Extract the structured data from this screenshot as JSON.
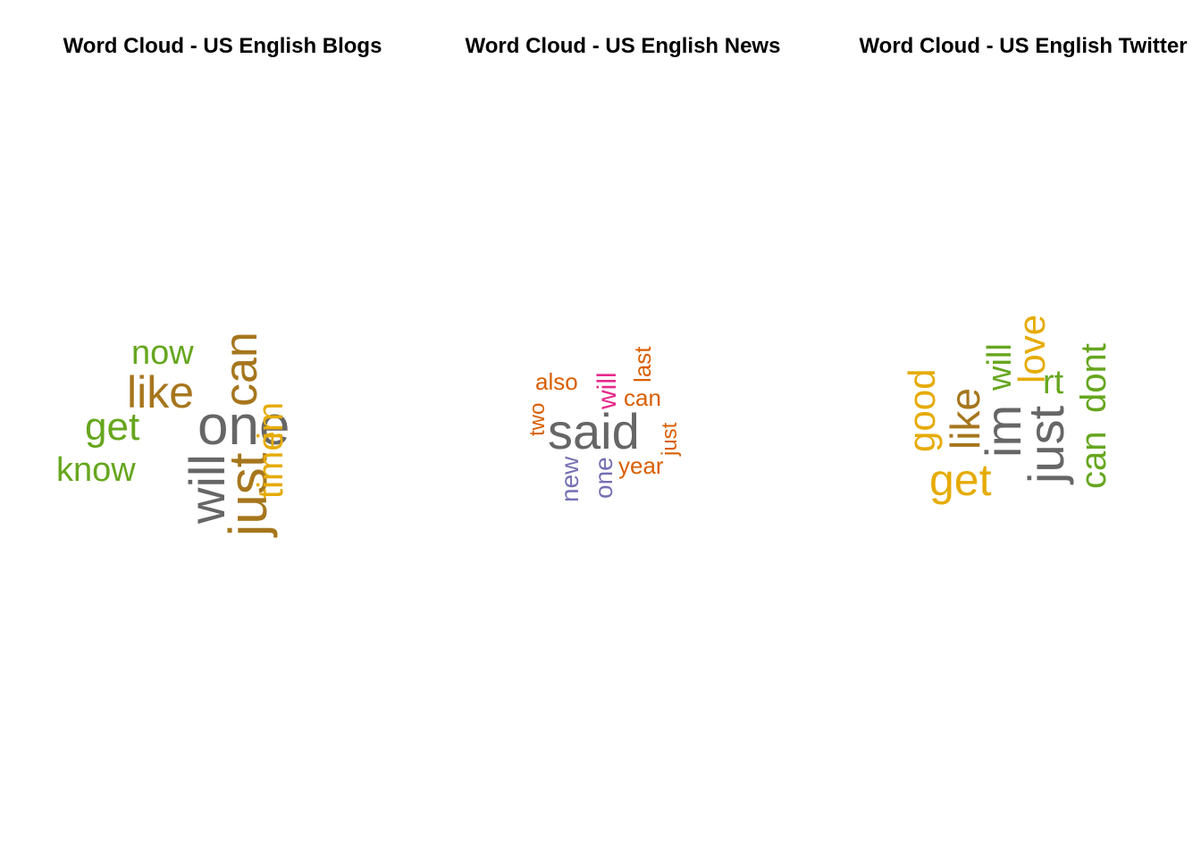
{
  "palette": {
    "green": "#66A61E",
    "brown": "#A6761D",
    "gray": "#666666",
    "gold": "#E6AB02",
    "orange": "#D95F02",
    "magenta": "#E7298A",
    "purple": "#7570B3"
  },
  "chart_data": [
    {
      "type": "wordcloud",
      "title": "Word Cloud - US English Blogs",
      "words": [
        {
          "text": "one",
          "color": "gray",
          "rot": 0
        },
        {
          "text": "will",
          "color": "gray",
          "rot": -90
        },
        {
          "text": "just",
          "color": "brown",
          "rot": -90
        },
        {
          "text": "can",
          "color": "brown",
          "rot": -90
        },
        {
          "text": "like",
          "color": "brown",
          "rot": 0
        },
        {
          "text": "get",
          "color": "green",
          "rot": 0
        },
        {
          "text": "time",
          "color": "gold",
          "rot": -90
        },
        {
          "text": "im",
          "color": "gold",
          "rot": -90
        },
        {
          "text": "now",
          "color": "green",
          "rot": 0
        },
        {
          "text": "know",
          "color": "green",
          "rot": 0
        }
      ]
    },
    {
      "type": "wordcloud",
      "title": "Word Cloud - US English News",
      "words": [
        {
          "text": "said",
          "color": "gray",
          "rot": 0
        },
        {
          "text": "will",
          "color": "magenta",
          "rot": -90
        },
        {
          "text": "one",
          "color": "purple",
          "rot": -90
        },
        {
          "text": "new",
          "color": "purple",
          "rot": -90
        },
        {
          "text": "also",
          "color": "orange",
          "rot": 0
        },
        {
          "text": "can",
          "color": "orange",
          "rot": 0
        },
        {
          "text": "year",
          "color": "orange",
          "rot": 0
        },
        {
          "text": "last",
          "color": "orange",
          "rot": -90
        },
        {
          "text": "just",
          "color": "orange",
          "rot": -90
        },
        {
          "text": "two",
          "color": "orange",
          "rot": -90
        }
      ]
    },
    {
      "type": "wordcloud",
      "title": "Word Cloud - US English Twitter",
      "words": [
        {
          "text": "just",
          "color": "gray",
          "rot": -90
        },
        {
          "text": "im",
          "color": "gray",
          "rot": -90
        },
        {
          "text": "like",
          "color": "brown",
          "rot": -90
        },
        {
          "text": "get",
          "color": "gold",
          "rot": 0
        },
        {
          "text": "good",
          "color": "gold",
          "rot": -90
        },
        {
          "text": "love",
          "color": "gold",
          "rot": -90
        },
        {
          "text": "will",
          "color": "green",
          "rot": -90
        },
        {
          "text": "rt",
          "color": "green",
          "rot": 0
        },
        {
          "text": "can",
          "color": "green",
          "rot": -90
        },
        {
          "text": "dont",
          "color": "green",
          "rot": -90
        }
      ]
    }
  ]
}
